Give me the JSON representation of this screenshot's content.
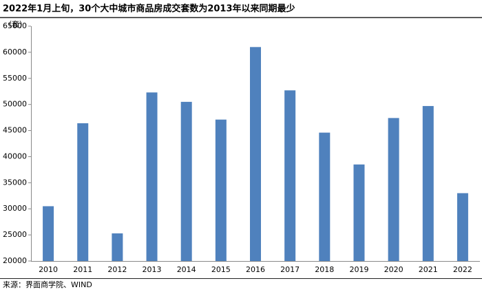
{
  "chart_data": {
    "type": "bar",
    "title": "2022年1月上旬，30个大中城市商品房成交套数为2013年以来同期最少",
    "y_label": "（套）",
    "source": "来源：界面商学院、WIND",
    "categories": [
      "2010",
      "2011",
      "2012",
      "2013",
      "2014",
      "2015",
      "2016",
      "2017",
      "2018",
      "2019",
      "2020",
      "2021",
      "2022"
    ],
    "values": [
      30500,
      46400,
      25300,
      52300,
      50500,
      47100,
      61000,
      52700,
      44600,
      38500,
      47400,
      49700,
      33000
    ],
    "color": "#4f81bd",
    "ylim": [
      20000,
      65000
    ],
    "yticks": [
      20000,
      25000,
      30000,
      35000,
      40000,
      45000,
      50000,
      55000,
      60000,
      65000
    ],
    "grid": false
  }
}
